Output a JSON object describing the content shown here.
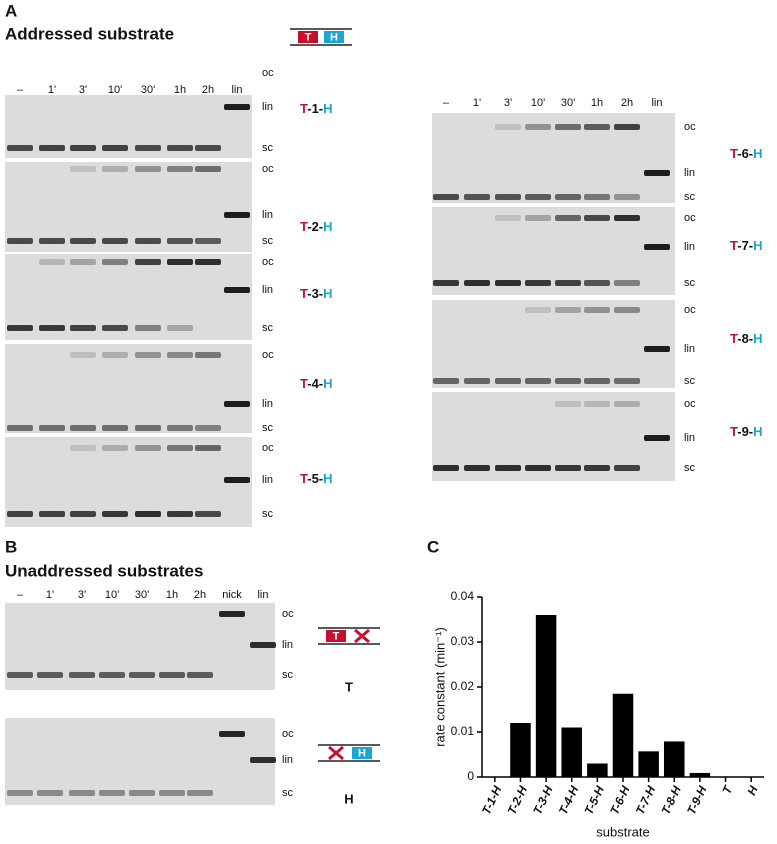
{
  "panel_a": {
    "letter": "A",
    "title": "Addressed substrate",
    "icon": [
      "T",
      "H"
    ],
    "lanes_left": [
      "–",
      "1'",
      "3'",
      "10'",
      "30'",
      "1h",
      "2h",
      "lin"
    ],
    "lanes_right": [
      "–",
      "1'",
      "3'",
      "10'",
      "30'",
      "1h",
      "2h",
      "lin"
    ],
    "gels": [
      {
        "bands": [
          "oc",
          "lin",
          "sc"
        ],
        "substrate": [
          "T",
          "-1-",
          "H"
        ]
      },
      {
        "bands": [
          "oc",
          "lin",
          "sc"
        ],
        "substrate": [
          "T",
          "-2-",
          "H"
        ]
      },
      {
        "bands": [
          "oc",
          "lin",
          "sc"
        ],
        "substrate": [
          "T",
          "-3-",
          "H"
        ]
      },
      {
        "bands": [
          "oc",
          "lin",
          "sc"
        ],
        "substrate": [
          "T",
          "-4-",
          "H"
        ]
      },
      {
        "bands": [
          "oc",
          "lin",
          "sc"
        ],
        "substrate": [
          "T",
          "-5-",
          "H"
        ]
      },
      {
        "bands": [
          "oc",
          "lin",
          "sc"
        ],
        "substrate": [
          "T",
          "-6-",
          "H"
        ]
      },
      {
        "bands": [
          "oc",
          "lin",
          "sc"
        ],
        "substrate": [
          "T",
          "-7-",
          "H"
        ]
      },
      {
        "bands": [
          "oc",
          "lin",
          "sc"
        ],
        "substrate": [
          "T",
          "-8-",
          "H"
        ]
      },
      {
        "bands": [
          "oc",
          "lin",
          "sc"
        ],
        "substrate": [
          "T",
          "-9-",
          "H"
        ]
      }
    ]
  },
  "panel_b": {
    "letter": "B",
    "title": "Unaddressed substrates",
    "lanes": [
      "–",
      "1'",
      "3'",
      "10'",
      "30'",
      "1h",
      "2h",
      "nick",
      "lin"
    ],
    "gels": [
      {
        "bands": [
          "oc",
          "lin",
          "sc"
        ],
        "icon_text": "T",
        "label": "T"
      },
      {
        "bands": [
          "oc",
          "lin",
          "sc"
        ],
        "icon_text": "H",
        "label": "H"
      }
    ]
  },
  "chart_data": {
    "type": "bar",
    "letter": "C",
    "categories": [
      "T-1-H",
      "T-2-H",
      "T-3-H",
      "T-4-H",
      "T-5-H",
      "T-6-H",
      "T-7-H",
      "T-8-H",
      "T-9-H",
      "T",
      "H"
    ],
    "values": [
      0,
      0.012,
      0.036,
      0.011,
      0.003,
      0.0185,
      0.0057,
      0.0079,
      0.0009,
      0,
      0
    ],
    "color": "#000000",
    "ylim": [
      0,
      0.04
    ],
    "yticks": [
      0,
      0.01,
      0.02,
      0.03,
      0.04
    ],
    "ylabel": "rate constant (min⁻¹)",
    "xlabel": "substrate"
  }
}
